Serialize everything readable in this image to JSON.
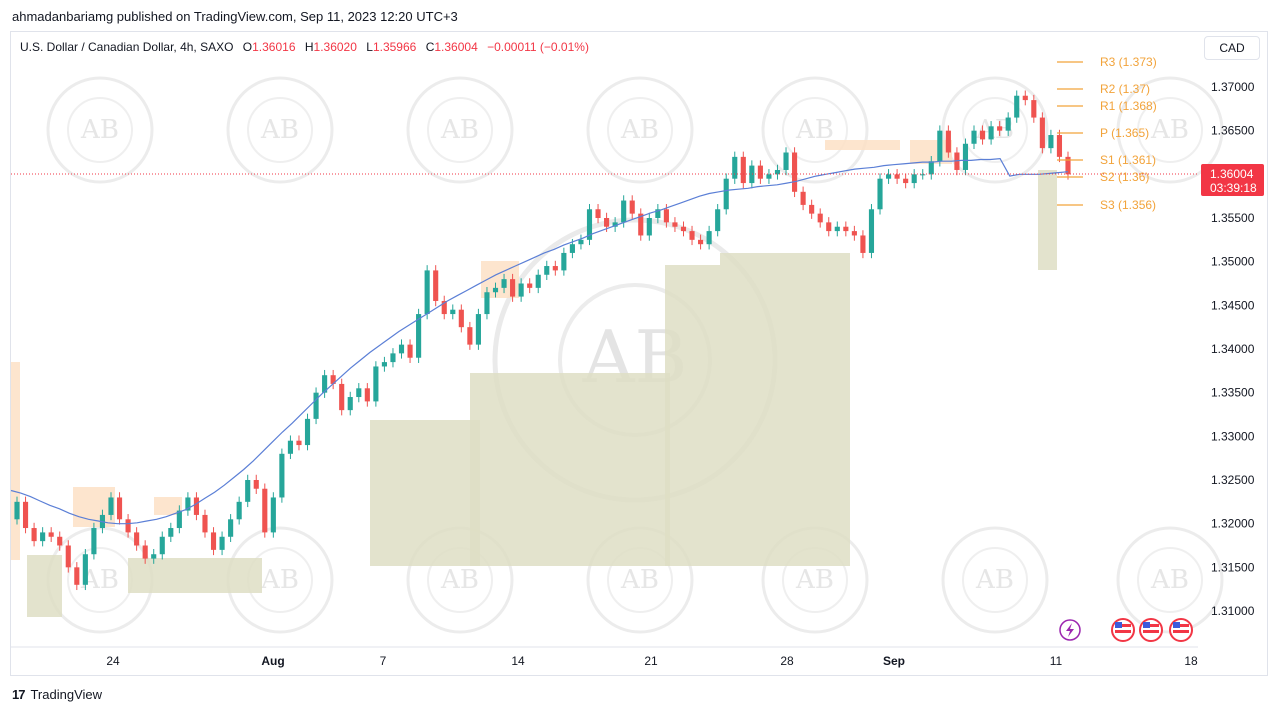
{
  "publish_text": "ahmadanbariamg published on TradingView.com, Sep 11, 2023 12:20 UTC+3",
  "symbol": {
    "name": "U.S. Dollar / Canadian Dollar, 4h, SAXO",
    "o_label": "O",
    "o": "1.36016",
    "h_label": "H",
    "h": "1.36020",
    "l_label": "L",
    "l": "1.35966",
    "c_label": "C",
    "c": "1.36004",
    "change": "−0.00011 (−0.01%)"
  },
  "currency_button": "CAD",
  "price_tag": {
    "price": "1.36004",
    "countdown": "03:39:18"
  },
  "footer": {
    "brand": "TradingView",
    "logo": "17"
  },
  "watermark": "AB",
  "colors": {
    "up": "#26a69a",
    "down": "#ef5350",
    "ma": "#5b7fd6",
    "pivot": "#f2a33a",
    "zone": "#dedec4",
    "zone_light": "#fde0c5",
    "tag": "#f23645"
  },
  "chart_data": {
    "type": "candlestick",
    "timeframe": "4h",
    "ylim": [
      1.309,
      1.3725
    ],
    "y_ticks": [
      "1.37000",
      "1.36500",
      "1.36000",
      "1.35500",
      "1.35000",
      "1.34500",
      "1.34000",
      "1.33500",
      "1.33000",
      "1.32500",
      "1.32000",
      "1.31500",
      "1.31000"
    ],
    "x_ticks": [
      "24",
      "Aug",
      "7",
      "14",
      "21",
      "28",
      "Sep",
      "11",
      "18"
    ],
    "pivots": [
      {
        "label": "R3 (1.373)",
        "value": 1.373
      },
      {
        "label": "R2 (1.37)",
        "value": 1.37
      },
      {
        "label": "R1 (1.368)",
        "value": 1.368
      },
      {
        "label": "P (1.365)",
        "value": 1.365
      },
      {
        "label": "S1 (1.361)",
        "value": 1.361
      },
      {
        "label": "S2 (1.36)",
        "value": 1.3595
      },
      {
        "label": "S3 (1.356)",
        "value": 1.3565
      }
    ],
    "series": [
      {
        "name": "close",
        "values": [
          1.3225,
          1.3195,
          1.318,
          1.319,
          1.3185,
          1.3175,
          1.315,
          1.313,
          1.3165,
          1.3195,
          1.321,
          1.323,
          1.3205,
          1.319,
          1.3175,
          1.316,
          1.3165,
          1.3185,
          1.3195,
          1.3215,
          1.323,
          1.321,
          1.319,
          1.317,
          1.3185,
          1.3205,
          1.3225,
          1.325,
          1.324,
          1.319,
          1.323,
          1.328,
          1.3295,
          1.329,
          1.332,
          1.335,
          1.337,
          1.336,
          1.333,
          1.3345,
          1.3355,
          1.334,
          1.338,
          1.3385,
          1.3395,
          1.3405,
          1.339,
          1.344,
          1.349,
          1.3455,
          1.344,
          1.3445,
          1.3425,
          1.3405,
          1.344,
          1.3465,
          1.347,
          1.348,
          1.346,
          1.3475,
          1.347,
          1.3485,
          1.3495,
          1.349,
          1.351,
          1.352,
          1.3525,
          1.356,
          1.355,
          1.354,
          1.3545,
          1.357,
          1.3555,
          1.353,
          1.355,
          1.356,
          1.3545,
          1.354,
          1.3535,
          1.3525,
          1.352,
          1.3535,
          1.356,
          1.3595,
          1.362,
          1.359,
          1.361,
          1.3595,
          1.36,
          1.3605,
          1.3625,
          1.358,
          1.3565,
          1.3555,
          1.3545,
          1.3535,
          1.354,
          1.3535,
          1.353,
          1.351,
          1.356,
          1.3595,
          1.36,
          1.3595,
          1.359,
          1.36,
          1.36,
          1.3615,
          1.365,
          1.3625,
          1.3605,
          1.3635,
          1.365,
          1.364,
          1.3655,
          1.365,
          1.3665,
          1.369,
          1.3685,
          1.3665,
          1.363,
          1.3645,
          1.362,
          1.36
        ]
      },
      {
        "name": "MA",
        "values": [
          1.3238,
          1.3235,
          1.3231,
          1.3226,
          1.3221,
          1.3217,
          1.3212,
          1.3208,
          1.3205,
          1.3203,
          1.3201,
          1.32,
          1.32,
          1.3201,
          1.3203,
          1.3205,
          1.3208,
          1.3212,
          1.3216,
          1.3222,
          1.3229,
          1.3236,
          1.3244,
          1.3253,
          1.3262,
          1.3272,
          1.3283,
          1.3294,
          1.3305,
          1.3315,
          1.3326,
          1.3337,
          1.3348,
          1.3358,
          1.3368,
          1.3378,
          1.3387,
          1.3396,
          1.3404,
          1.3412,
          1.342,
          1.3427,
          1.3434,
          1.3441,
          1.3448,
          1.3455,
          1.3461,
          1.3467,
          1.3473,
          1.3479,
          1.3485,
          1.349,
          1.3495,
          1.35,
          1.3505,
          1.351,
          1.3514,
          1.3519,
          1.3523,
          1.3527,
          1.3532,
          1.3536,
          1.354,
          1.3544,
          1.3548,
          1.3552,
          1.3556,
          1.3559,
          1.3563,
          1.3567,
          1.3571,
          1.3575,
          1.3578,
          1.358,
          1.3582,
          1.3583,
          1.3584,
          1.3586,
          1.3587,
          1.3588,
          1.359,
          1.3592,
          1.3595,
          1.3598,
          1.36,
          1.3602,
          1.3604,
          1.3606,
          1.3607,
          1.3608,
          1.361,
          1.3611,
          1.3612,
          1.3613,
          1.3614,
          1.3614,
          1.3615,
          1.3615,
          1.3616,
          1.3616,
          1.3617,
          1.3617,
          1.3618,
          1.3598,
          1.36,
          1.36,
          1.36,
          1.3601,
          1.3602,
          1.3603
        ]
      }
    ]
  }
}
